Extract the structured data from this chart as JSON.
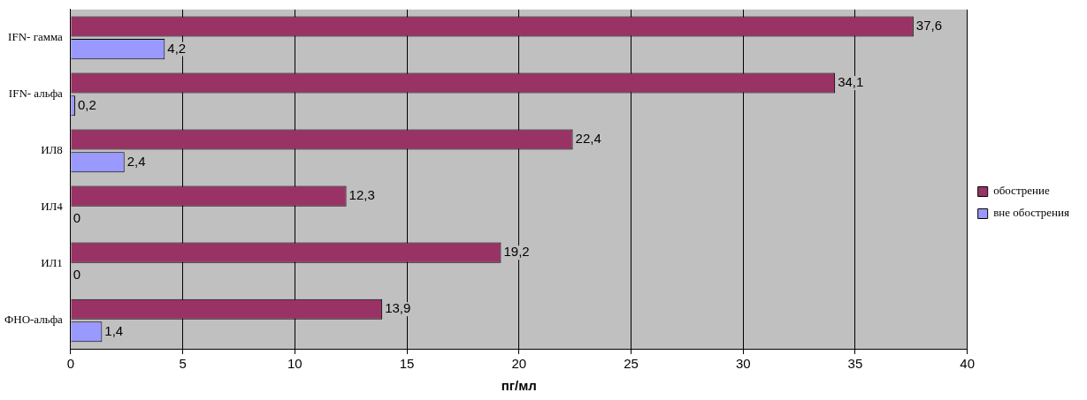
{
  "chart_data": {
    "type": "bar",
    "orientation": "horizontal",
    "xlabel": "пг/мл",
    "categories": [
      "IFN- гамма",
      "IFN- альфа",
      "ИЛ8",
      "ИЛ4",
      "ИЛ1",
      "ФНО-альфа"
    ],
    "series": [
      {
        "name": "обострение",
        "color": "#993366",
        "values": [
          37.6,
          34.1,
          22.4,
          12.3,
          19.2,
          13.9
        ],
        "value_labels": [
          "37,6",
          "34,1",
          "22,4",
          "12,3",
          "19,2",
          "13,9"
        ]
      },
      {
        "name": "вне обострения",
        "color": "#9999ff",
        "values": [
          4.2,
          0.2,
          2.4,
          0,
          0,
          1.4
        ],
        "value_labels": [
          "4,2",
          "0,2",
          "2,4",
          "0",
          "0",
          "1,4"
        ]
      }
    ],
    "xlim": [
      0,
      40
    ],
    "xticks": [
      0,
      5,
      10,
      15,
      20,
      25,
      30,
      35,
      40
    ],
    "grid": "x",
    "legend": "right"
  }
}
